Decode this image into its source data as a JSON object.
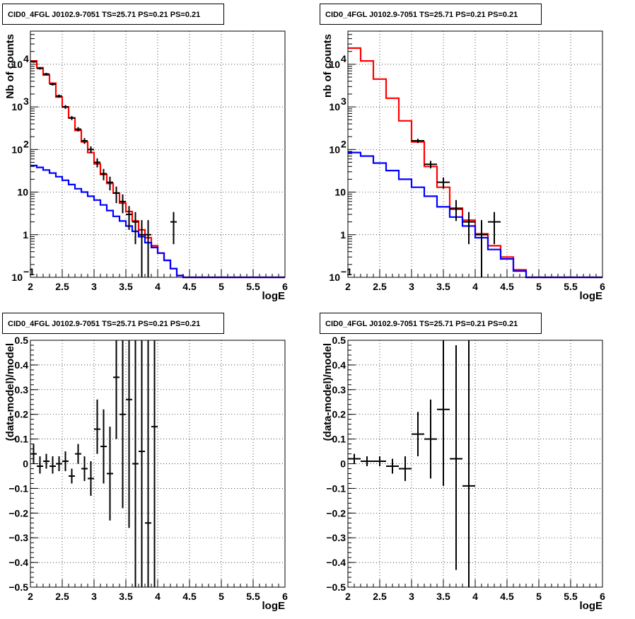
{
  "chart_data": [
    {
      "type": "line",
      "panel": "top-left",
      "title": "CID0_4FGL J0102.9-7051 TS=25.71 PS=0.21 PS=0.21",
      "xlabel": "logE",
      "ylabel": "Nb of counts",
      "xlim": [
        2,
        6
      ],
      "ylim": [
        0.1,
        60000
      ],
      "yscale": "log",
      "grid": true,
      "xticks": [
        "2",
        "2.5",
        "3",
        "3.5",
        "4",
        "4.5",
        "5",
        "5.5",
        "6"
      ],
      "yticks": [
        {
          "v": 0.1,
          "label": "10",
          "sup": "−1"
        },
        {
          "v": 1,
          "label": "1",
          "sup": ""
        },
        {
          "v": 10,
          "label": "10",
          "sup": ""
        },
        {
          "v": 100,
          "label": "10",
          "sup": "2"
        },
        {
          "v": 1000,
          "label": "10",
          "sup": "3"
        },
        {
          "v": 10000,
          "label": "10",
          "sup": "4"
        }
      ],
      "bin_edges": [
        2.0,
        2.1,
        2.2,
        2.3,
        2.4,
        2.5,
        2.6,
        2.7,
        2.8,
        2.9,
        3.0,
        3.1,
        3.2,
        3.3,
        3.4,
        3.5,
        3.6,
        3.7,
        3.8,
        3.9,
        4.0,
        4.1,
        4.2,
        4.3,
        4.4,
        4.5,
        4.6,
        4.7,
        4.8,
        4.9,
        5.0,
        5.1,
        5.2,
        5.3,
        5.4,
        5.5,
        5.6,
        5.7,
        5.8,
        5.9,
        6.0
      ],
      "series": [
        {
          "color": "#ff0000",
          "values": [
            12000,
            8300,
            5600,
            3600,
            1700,
            1000,
            550,
            280,
            150,
            85,
            46,
            26,
            16,
            9.5,
            5.5,
            3.5,
            2.1,
            1.3,
            0.85,
            0.55,
            0.37,
            0.25,
            0.16,
            0.11,
            0.1,
            0.1,
            0.1,
            0.1,
            0.1,
            0.1,
            0.1,
            0.1,
            0.1,
            0.1,
            0.1,
            0.1,
            0.1,
            0.1,
            0.1,
            0.1
          ]
        },
        {
          "color": "#0000ff",
          "values": [
            42,
            38,
            33,
            28,
            23,
            19,
            15,
            12,
            10,
            8,
            6.5,
            5,
            3.7,
            2.7,
            2.1,
            1.6,
            1.2,
            0.9,
            0.65,
            0.5,
            0.37,
            0.25,
            0.16,
            0.11,
            0.1,
            0.1,
            0.1,
            0.1,
            0.1,
            0.1,
            0.1,
            0.1,
            0.1,
            0.1,
            0.1,
            0.1,
            0.1,
            0.1,
            0.1,
            0.1
          ]
        }
      ],
      "data_points": [
        {
          "x": 2.05,
          "y": 11500,
          "lo": 10800,
          "hi": 12200
        },
        {
          "x": 2.15,
          "y": 8000,
          "lo": 7500,
          "hi": 8500
        },
        {
          "x": 2.25,
          "y": 5900,
          "lo": 5500,
          "hi": 6300
        },
        {
          "x": 2.35,
          "y": 3400,
          "lo": 3150,
          "hi": 3650
        },
        {
          "x": 2.45,
          "y": 1800,
          "lo": 1650,
          "hi": 1950
        },
        {
          "x": 2.55,
          "y": 1000,
          "lo": 900,
          "hi": 1100
        },
        {
          "x": 2.65,
          "y": 550,
          "lo": 490,
          "hi": 610
        },
        {
          "x": 2.75,
          "y": 300,
          "lo": 265,
          "hi": 335
        },
        {
          "x": 2.85,
          "y": 160,
          "lo": 135,
          "hi": 185
        },
        {
          "x": 2.95,
          "y": 100,
          "lo": 82,
          "hi": 118
        },
        {
          "x": 3.05,
          "y": 50,
          "lo": 38,
          "hi": 62
        },
        {
          "x": 3.15,
          "y": 27,
          "lo": 19,
          "hi": 35
        },
        {
          "x": 3.25,
          "y": 17,
          "lo": 11,
          "hi": 23
        },
        {
          "x": 3.35,
          "y": 9.5,
          "lo": 5.5,
          "hi": 13.5
        },
        {
          "x": 3.45,
          "y": 6,
          "lo": 3.2,
          "hi": 8.8
        },
        {
          "x": 3.55,
          "y": 3,
          "lo": 1.3,
          "hi": 4.7
        },
        {
          "x": 3.65,
          "y": 2,
          "lo": 0.6,
          "hi": 3.4
        },
        {
          "x": 3.75,
          "y": 1,
          "lo": 0.1,
          "hi": 2.2
        },
        {
          "x": 3.85,
          "y": 1,
          "lo": 0.1,
          "hi": 2.2
        },
        {
          "x": 4.25,
          "y": 2,
          "lo": 0.6,
          "hi": 3.4
        }
      ]
    },
    {
      "type": "line",
      "panel": "top-right",
      "title": "CID0_4FGL J0102.9-7051 TS=25.71 PS=0.21 PS=0.21",
      "xlabel": "logE",
      "ylabel": "nb of counts",
      "xlim": [
        2,
        6
      ],
      "ylim": [
        0.1,
        60000
      ],
      "yscale": "log",
      "grid": true,
      "xticks": [
        "2",
        "2.5",
        "3",
        "3.5",
        "4",
        "4.5",
        "5",
        "5.5",
        "6"
      ],
      "yticks": [
        {
          "v": 0.1,
          "label": "10",
          "sup": "−1"
        },
        {
          "v": 1,
          "label": "1",
          "sup": ""
        },
        {
          "v": 10,
          "label": "10",
          "sup": ""
        },
        {
          "v": 100,
          "label": "10",
          "sup": "2"
        },
        {
          "v": 1000,
          "label": "10",
          "sup": "3"
        },
        {
          "v": 10000,
          "label": "10",
          "sup": "4"
        }
      ],
      "bin_edges": [
        2.0,
        2.2,
        2.4,
        2.6,
        2.8,
        3.0,
        3.2,
        3.4,
        3.6,
        3.8,
        4.0,
        4.2,
        4.4,
        4.6,
        4.8,
        5.0,
        5.2,
        5.4,
        5.6,
        5.8,
        6.0
      ],
      "series": [
        {
          "color": "#ff0000",
          "values": [
            24000,
            12000,
            4500,
            1600,
            470,
            150,
            40,
            13,
            4.2,
            2.2,
            1.05,
            0.55,
            0.3,
            0.15,
            0.1,
            0.1,
            0.1,
            0.1,
            0.1,
            0.1
          ]
        },
        {
          "color": "#0000ff",
          "values": [
            85,
            70,
            48,
            32,
            20,
            13,
            8,
            4.5,
            2.6,
            1.6,
            0.85,
            0.45,
            0.27,
            0.14,
            0.1,
            0.1,
            0.1,
            0.1,
            0.1,
            0.1
          ]
        }
      ],
      "data_points": [
        {
          "x": 3.1,
          "y": 160,
          "lo": 142,
          "hi": 178
        },
        {
          "x": 3.3,
          "y": 45,
          "lo": 36,
          "hi": 54
        },
        {
          "x": 3.5,
          "y": 17,
          "lo": 12,
          "hi": 22
        },
        {
          "x": 3.7,
          "y": 4,
          "lo": 2.1,
          "hi": 6.5
        },
        {
          "x": 3.9,
          "y": 2,
          "lo": 0.6,
          "hi": 3.4
        },
        {
          "x": 4.1,
          "y": 1,
          "lo": 0.1,
          "hi": 2.2
        },
        {
          "x": 4.3,
          "y": 2,
          "lo": 0.6,
          "hi": 3.4
        }
      ]
    },
    {
      "type": "scatter",
      "panel": "bottom-left",
      "title": "CID0_4FGL J0102.9-7051 TS=25.71 PS=0.21 PS=0.21",
      "xlabel": "logE",
      "ylabel": "(data-model)/model",
      "xlim": [
        2,
        6
      ],
      "ylim": [
        -0.5,
        0.5
      ],
      "yscale": "linear",
      "grid": true,
      "xticks": [
        "2",
        "2.5",
        "3",
        "3.5",
        "4",
        "4.5",
        "5",
        "5.5",
        "6"
      ],
      "yticks": [
        {
          "v": -0.5,
          "label": "−0.5",
          "sup": ""
        },
        {
          "v": -0.4,
          "label": "−0.4",
          "sup": ""
        },
        {
          "v": -0.3,
          "label": "−0.3",
          "sup": ""
        },
        {
          "v": -0.2,
          "label": "−0.2",
          "sup": ""
        },
        {
          "v": -0.1,
          "label": "−0.1",
          "sup": ""
        },
        {
          "v": 0,
          "label": "0",
          "sup": ""
        },
        {
          "v": 0.1,
          "label": "0.1",
          "sup": ""
        },
        {
          "v": 0.2,
          "label": "0.2",
          "sup": ""
        },
        {
          "v": 0.3,
          "label": "0.3",
          "sup": ""
        },
        {
          "v": 0.4,
          "label": "0.4",
          "sup": ""
        },
        {
          "v": 0.5,
          "label": "0.5",
          "sup": ""
        }
      ],
      "xerr": 0.05,
      "data_points": [
        {
          "x": 2.05,
          "y": 0.04,
          "lo": 0.0,
          "hi": 0.08
        },
        {
          "x": 2.15,
          "y": -0.01,
          "lo": -0.04,
          "hi": 0.03
        },
        {
          "x": 2.25,
          "y": 0.01,
          "lo": -0.02,
          "hi": 0.04
        },
        {
          "x": 2.35,
          "y": -0.01,
          "lo": -0.04,
          "hi": 0.03
        },
        {
          "x": 2.45,
          "y": 0.0,
          "lo": -0.03,
          "hi": 0.03
        },
        {
          "x": 2.55,
          "y": 0.01,
          "lo": -0.03,
          "hi": 0.05
        },
        {
          "x": 2.65,
          "y": -0.05,
          "lo": -0.08,
          "hi": -0.02
        },
        {
          "x": 2.75,
          "y": 0.04,
          "lo": 0.0,
          "hi": 0.08
        },
        {
          "x": 2.85,
          "y": -0.02,
          "lo": -0.07,
          "hi": 0.03
        },
        {
          "x": 2.95,
          "y": -0.06,
          "lo": -0.13,
          "hi": 0.01
        },
        {
          "x": 3.05,
          "y": 0.14,
          "lo": 0.04,
          "hi": 0.26
        },
        {
          "x": 3.15,
          "y": 0.07,
          "lo": -0.08,
          "hi": 0.22
        },
        {
          "x": 3.25,
          "y": -0.04,
          "lo": -0.23,
          "hi": 0.15
        },
        {
          "x": 3.35,
          "y": 0.35,
          "lo": 0.1,
          "hi": 0.5
        },
        {
          "x": 3.45,
          "y": 0.2,
          "lo": -0.18,
          "hi": 0.5
        },
        {
          "x": 3.55,
          "y": 0.26,
          "lo": -0.26,
          "hi": 0.5
        },
        {
          "x": 3.65,
          "y": 0.0,
          "lo": -0.5,
          "hi": 0.5
        },
        {
          "x": 3.75,
          "y": 0.05,
          "lo": -0.5,
          "hi": 0.5
        },
        {
          "x": 3.85,
          "y": -0.24,
          "lo": -0.5,
          "hi": 0.5
        },
        {
          "x": 3.95,
          "y": 0.15,
          "lo": -0.5,
          "hi": 0.5
        }
      ]
    },
    {
      "type": "scatter",
      "panel": "bottom-right",
      "title": "CID0_4FGL J0102.9-7051 TS=25.71 PS=0.21 PS=0.21",
      "xlabel": "logE",
      "ylabel": "(data-model)/model",
      "xlim": [
        2,
        6
      ],
      "ylim": [
        -0.5,
        0.5
      ],
      "yscale": "linear",
      "grid": true,
      "xticks": [
        "2",
        "2.5",
        "3",
        "3.5",
        "4",
        "4.5",
        "5",
        "5.5",
        "6"
      ],
      "yticks": [
        {
          "v": -0.5,
          "label": "−0.5",
          "sup": ""
        },
        {
          "v": -0.4,
          "label": "−0.4",
          "sup": ""
        },
        {
          "v": -0.3,
          "label": "−0.3",
          "sup": ""
        },
        {
          "v": -0.2,
          "label": "−0.2",
          "sup": ""
        },
        {
          "v": -0.1,
          "label": "−0.1",
          "sup": ""
        },
        {
          "v": 0,
          "label": "0",
          "sup": ""
        },
        {
          "v": 0.1,
          "label": "0.1",
          "sup": ""
        },
        {
          "v": 0.2,
          "label": "0.2",
          "sup": ""
        },
        {
          "v": 0.3,
          "label": "0.3",
          "sup": ""
        },
        {
          "v": 0.4,
          "label": "0.4",
          "sup": ""
        },
        {
          "v": 0.5,
          "label": "0.5",
          "sup": ""
        }
      ],
      "xerr": 0.1,
      "data_points": [
        {
          "x": 2.1,
          "y": 0.02,
          "lo": 0.0,
          "hi": 0.04
        },
        {
          "x": 2.3,
          "y": 0.01,
          "lo": -0.01,
          "hi": 0.03
        },
        {
          "x": 2.5,
          "y": 0.01,
          "lo": -0.01,
          "hi": 0.03
        },
        {
          "x": 2.7,
          "y": -0.01,
          "lo": -0.04,
          "hi": 0.02
        },
        {
          "x": 2.9,
          "y": -0.02,
          "lo": -0.07,
          "hi": 0.03
        },
        {
          "x": 3.1,
          "y": 0.12,
          "lo": 0.03,
          "hi": 0.21
        },
        {
          "x": 3.3,
          "y": 0.1,
          "lo": -0.06,
          "hi": 0.26
        },
        {
          "x": 3.5,
          "y": 0.22,
          "lo": -0.09,
          "hi": 0.5
        },
        {
          "x": 3.7,
          "y": 0.02,
          "lo": -0.43,
          "hi": 0.48
        },
        {
          "x": 3.9,
          "y": -0.09,
          "lo": -0.5,
          "hi": 0.5
        }
      ]
    }
  ]
}
